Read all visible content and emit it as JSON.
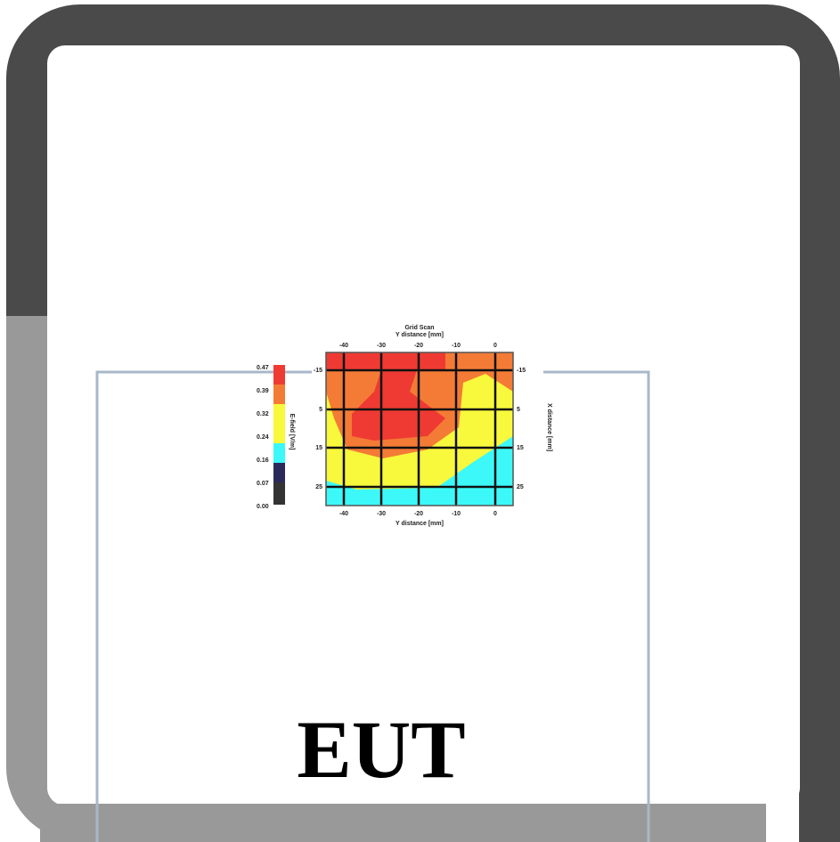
{
  "heatmap": {
    "title": "Grid Scan",
    "top_axis_label": "Y distance [mm]",
    "bottom_axis_label": "Y distance [mm]",
    "right_axis_label": "X distance [mm]",
    "colorbar_label": "E-field [V/m]",
    "x_ticks": [
      "-40",
      "-30",
      "-20",
      "-10",
      "0"
    ],
    "y_ticks": [
      "-15",
      "5",
      "15",
      "25"
    ],
    "colorbar_ticks": [
      "0.47",
      "0.39",
      "0.32",
      "0.24",
      "0.16",
      "0.07",
      "0.00"
    ]
  },
  "label": "EUT"
}
